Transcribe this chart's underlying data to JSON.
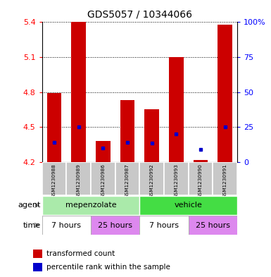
{
  "title": "GDS5057 / 10344066",
  "samples": [
    "GSM1230988",
    "GSM1230989",
    "GSM1230986",
    "GSM1230987",
    "GSM1230992",
    "GSM1230993",
    "GSM1230990",
    "GSM1230991"
  ],
  "bar_values": [
    4.79,
    5.4,
    4.38,
    4.73,
    4.65,
    5.1,
    4.22,
    5.38
  ],
  "bar_base": 4.2,
  "blue_dot_values": [
    4.37,
    4.5,
    4.32,
    4.37,
    4.36,
    4.44,
    4.31,
    4.5
  ],
  "ylim": [
    4.2,
    5.4
  ],
  "yticks_left": [
    4.2,
    4.5,
    4.8,
    5.1,
    5.4
  ],
  "yticks_right": [
    0,
    25,
    50,
    75,
    100
  ],
  "yticks_right_vals": [
    4.2,
    4.5,
    4.8,
    5.1,
    5.4
  ],
  "bar_color": "#cc0000",
  "blue_color": "#0000cc",
  "agent_light_green": "#aaeaaa",
  "agent_green": "#44dd44",
  "time_white": "#ffffff",
  "time_pink": "#dd88ee",
  "gray_bg": "#c8c8c8",
  "agent_labels": [
    "mepenzolate",
    "vehicle"
  ],
  "time_labels": [
    "7 hours",
    "25 hours",
    "7 hours",
    "25 hours"
  ],
  "legend_red": "transformed count",
  "legend_blue": "percentile rank within the sample",
  "left_label_agent": "agent",
  "left_label_time": "time"
}
